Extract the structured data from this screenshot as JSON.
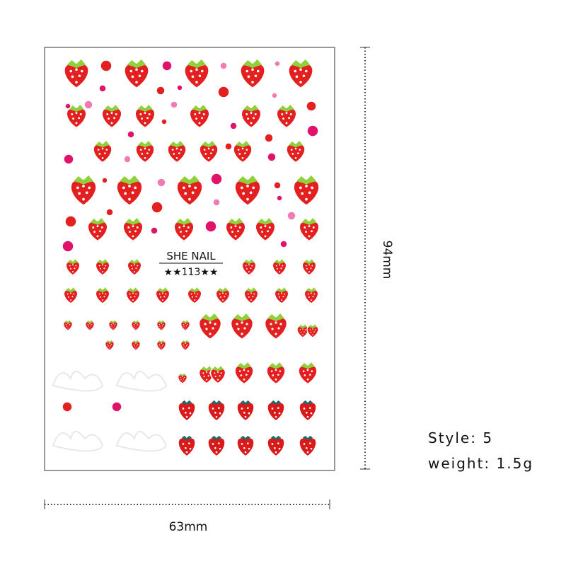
{
  "sheet": {
    "brand": "SHE NAIL",
    "code": "★★113★★"
  },
  "dimensions": {
    "height": "94mm",
    "width": "63mm"
  },
  "specs": {
    "style": "Style: 5",
    "weight": "weight: 1.5g"
  }
}
